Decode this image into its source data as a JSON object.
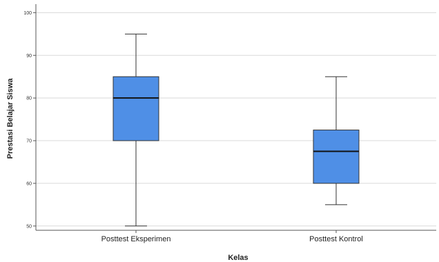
{
  "chart_data": {
    "type": "boxplot",
    "xlabel": "Kelas",
    "ylabel": "Prestasi Belajar Siswa",
    "ylim": [
      49,
      102
    ],
    "yticks": [
      50,
      60,
      70,
      80,
      90,
      100
    ],
    "grid": true,
    "categories": [
      "Posttest Eksperimen",
      "Posttest Kontrol"
    ],
    "boxes": [
      {
        "category": "Posttest Eksperimen",
        "min": 50,
        "q1": 70,
        "median": 80,
        "q3": 85,
        "max": 95
      },
      {
        "category": "Posttest Kontrol",
        "min": 55,
        "q1": 60,
        "median": 67.5,
        "q3": 72.5,
        "max": 85
      }
    ],
    "box_color": "#4f8fe6"
  }
}
